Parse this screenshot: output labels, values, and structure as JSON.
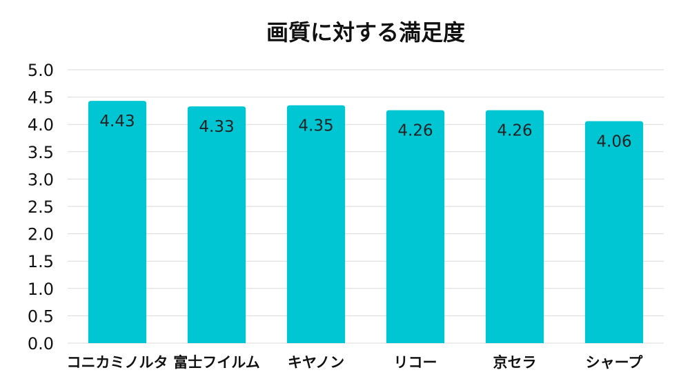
{
  "chart_data": {
    "type": "bar",
    "title": "画質に対する満足度",
    "categories": [
      "コニカミノルタ",
      "富士フイルム",
      "キヤノン",
      "リコー",
      "京セラ",
      "シャープ"
    ],
    "values": [
      4.43,
      4.33,
      4.35,
      4.26,
      4.26,
      4.06
    ],
    "value_labels": [
      "4.43",
      "4.33",
      "4.35",
      "4.26",
      "4.26",
      "4.06"
    ],
    "xlabel": "",
    "ylabel": "",
    "ylim": [
      0,
      5
    ],
    "yticks": [
      "0.0",
      "0.5",
      "1.0",
      "1.5",
      "2.0",
      "2.5",
      "3.0",
      "3.5",
      "4.0",
      "4.5",
      "5.0"
    ],
    "grid": true,
    "legend": "none",
    "bar_color": "#00c6d4",
    "grid_color": "#d9d9d9",
    "text_color": "#111111"
  }
}
